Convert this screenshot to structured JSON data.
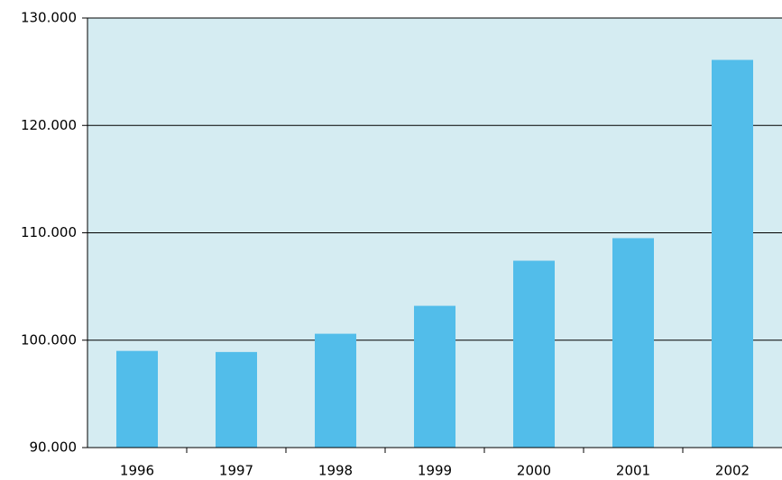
{
  "chart_data": {
    "type": "bar",
    "categories": [
      "1996",
      "1997",
      "1998",
      "1999",
      "2000",
      "2001",
      "2002"
    ],
    "values": [
      99000,
      98900,
      100600,
      103200,
      107400,
      109500,
      126100
    ],
    "color": "#52bdea",
    "background": "#d5ecf2",
    "ylim": [
      90000,
      130000
    ],
    "yticks": [
      {
        "value": 90000,
        "label": "90.000"
      },
      {
        "value": 100000,
        "label": "100.000"
      },
      {
        "value": 110000,
        "label": "110.000"
      },
      {
        "value": 120000,
        "label": "120.000"
      },
      {
        "value": 130000,
        "label": "130.000"
      }
    ],
    "grid": true
  }
}
